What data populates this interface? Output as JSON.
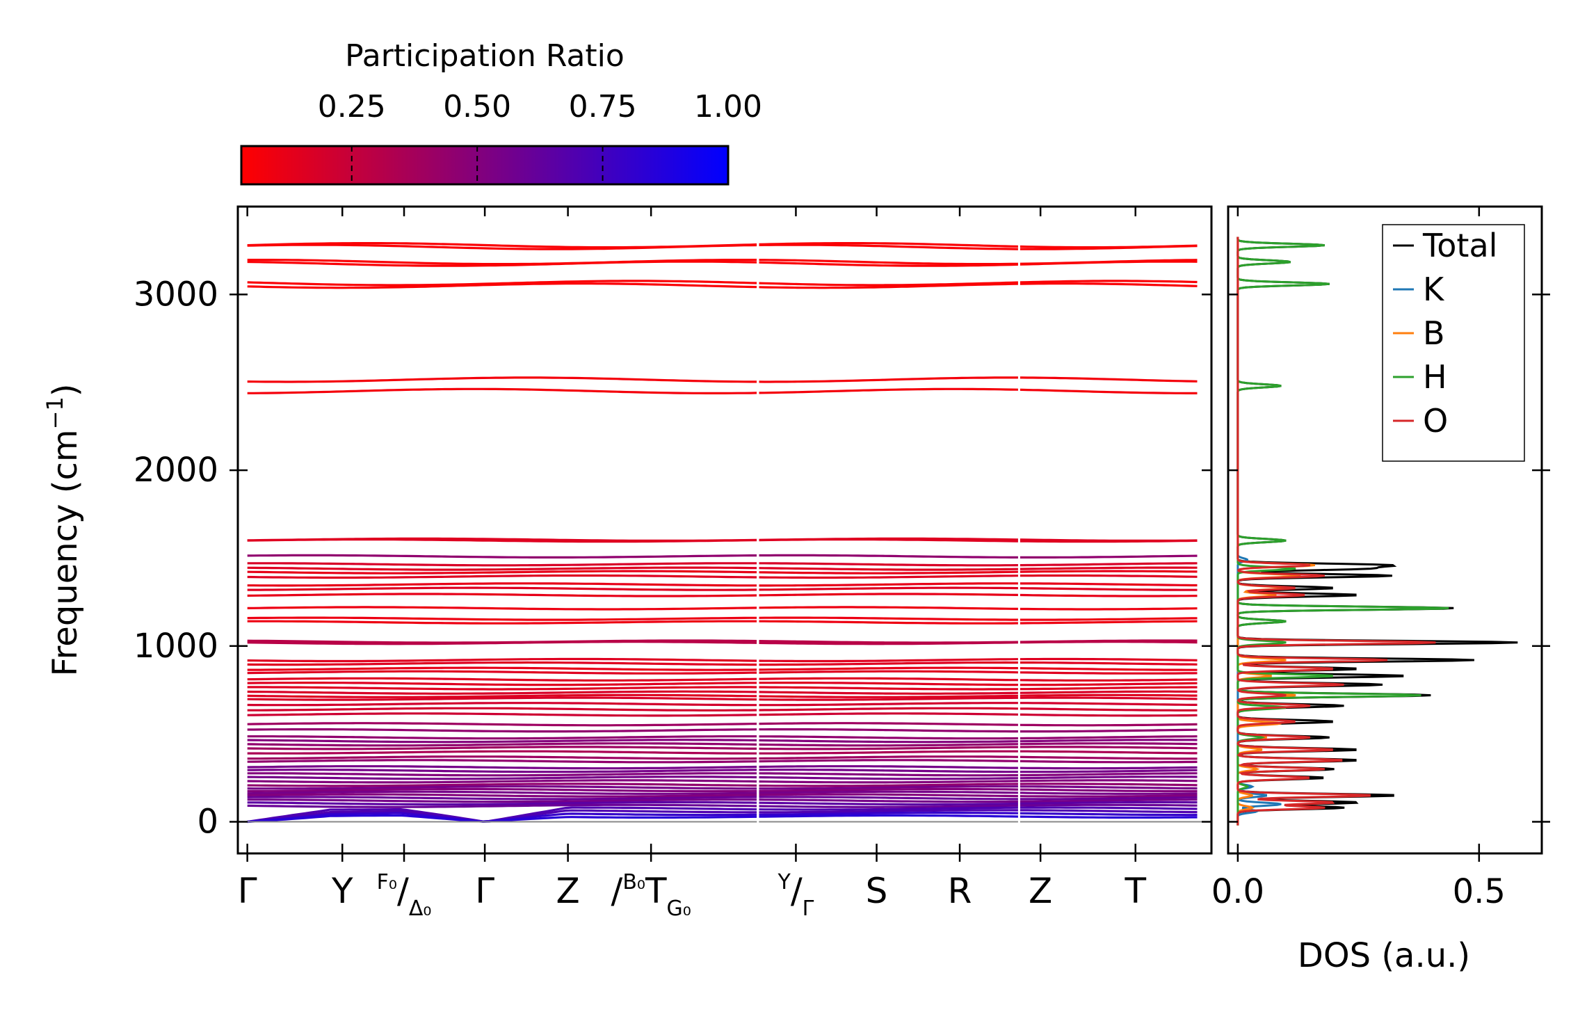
{
  "chart_data": [
    {
      "type": "line",
      "name": "phonon-band-structure",
      "ylabel_main": "Frequency (cm",
      "ylabel_sup": "−1",
      "ylabel_close": ")",
      "ylim": [
        -180,
        3500
      ],
      "yticks": [
        0,
        1000,
        2000,
        3000
      ],
      "ytick_labels": [
        "0",
        "1000",
        "2000",
        "3000"
      ],
      "segment_breaks": [
        2.15,
        3.25
      ],
      "xlim": [
        -0.04,
        4.06
      ],
      "high_symmetry_points": [
        {
          "x": 0.0,
          "label": "Γ"
        },
        {
          "x": 0.4,
          "label": "Y"
        },
        {
          "x": 0.66,
          "label": "/",
          "sup": "F₀",
          "sub": "Δ₀"
        },
        {
          "x": 1.0,
          "label": "Γ"
        },
        {
          "x": 1.35,
          "label": "Z"
        },
        {
          "x": 1.7,
          "label": "T",
          "pre": "/",
          "sup": "B₀",
          "sub": "G₀"
        },
        {
          "x": 2.31,
          "label": "/",
          "sup": "Y",
          "sub": "Γ"
        },
        {
          "x": 2.65,
          "label": "S"
        },
        {
          "x": 3.0,
          "label": "R"
        },
        {
          "x": 3.34,
          "label": "Z"
        },
        {
          "x": 3.74,
          "label": "T"
        }
      ],
      "bands": [
        {
          "f": 3280,
          "pr": 0.05
        },
        {
          "f": 3270,
          "pr": 0.05
        },
        {
          "f": 3185,
          "pr": 0.05
        },
        {
          "f": 3175,
          "pr": 0.05
        },
        {
          "f": 3065,
          "pr": 0.05
        },
        {
          "f": 3050,
          "pr": 0.05
        },
        {
          "f": 2515,
          "pr": 0.07
        },
        {
          "f": 2450,
          "pr": 0.07
        },
        {
          "f": 1605,
          "pr": 0.15
        },
        {
          "f": 1600,
          "pr": 0.15
        },
        {
          "f": 1510,
          "pr": 0.45
        },
        {
          "f": 1465,
          "pr": 0.18
        },
        {
          "f": 1440,
          "pr": 0.15
        },
        {
          "f": 1420,
          "pr": 0.12
        },
        {
          "f": 1395,
          "pr": 0.15
        },
        {
          "f": 1350,
          "pr": 0.12
        },
        {
          "f": 1325,
          "pr": 0.15
        },
        {
          "f": 1290,
          "pr": 0.12
        },
        {
          "f": 1215,
          "pr": 0.1
        },
        {
          "f": 1155,
          "pr": 0.1
        },
        {
          "f": 1135,
          "pr": 0.1
        },
        {
          "f": 1025,
          "pr": 0.3
        },
        {
          "f": 1018,
          "pr": 0.3
        },
        {
          "f": 920,
          "pr": 0.15
        },
        {
          "f": 900,
          "pr": 0.15
        },
        {
          "f": 870,
          "pr": 0.12
        },
        {
          "f": 850,
          "pr": 0.15
        },
        {
          "f": 810,
          "pr": 0.15
        },
        {
          "f": 785,
          "pr": 0.15
        },
        {
          "f": 760,
          "pr": 0.15
        },
        {
          "f": 735,
          "pr": 0.18
        },
        {
          "f": 715,
          "pr": 0.15
        },
        {
          "f": 700,
          "pr": 0.18
        },
        {
          "f": 670,
          "pr": 0.2
        },
        {
          "f": 640,
          "pr": 0.2
        },
        {
          "f": 610,
          "pr": 0.22
        },
        {
          "f": 555,
          "pr": 0.4
        },
        {
          "f": 520,
          "pr": 0.45
        },
        {
          "f": 480,
          "pr": 0.45
        },
        {
          "f": 460,
          "pr": 0.5
        },
        {
          "f": 440,
          "pr": 0.45
        },
        {
          "f": 420,
          "pr": 0.4
        },
        {
          "f": 395,
          "pr": 0.35
        },
        {
          "f": 365,
          "pr": 0.4
        },
        {
          "f": 345,
          "pr": 0.45
        },
        {
          "f": 310,
          "pr": 0.55
        },
        {
          "f": 290,
          "pr": 0.55
        },
        {
          "f": 270,
          "pr": 0.5
        },
        {
          "f": 250,
          "pr": 0.55
        },
        {
          "f": 230,
          "pr": 0.5
        },
        {
          "f": 210,
          "pr": 0.45
        },
        {
          "f": 195,
          "pr": 0.55
        },
        {
          "f": 180,
          "pr": 0.5
        },
        {
          "f": 165,
          "pr": 0.55
        },
        {
          "f": 150,
          "pr": 0.5
        },
        {
          "f": 135,
          "pr": 0.6
        },
        {
          "f": 120,
          "pr": 0.55
        },
        {
          "f": 105,
          "pr": 0.65
        },
        {
          "f": 90,
          "pr": 0.6
        },
        {
          "f": 75,
          "pr": 0.7
        },
        {
          "f": 60,
          "pr": 0.7
        },
        {
          "f": 45,
          "pr": 0.8
        },
        {
          "f": 30,
          "pr": 0.85
        }
      ],
      "acoustic_dips_at": [
        0.0,
        1.0
      ]
    },
    {
      "type": "line",
      "name": "density-of-states",
      "xlabel": "DOS (a.u.)",
      "xlim": [
        -0.02,
        0.63
      ],
      "xticks": [
        0.0,
        0.5
      ],
      "xtick_labels": [
        "0.0",
        "0.5"
      ],
      "legend_location": "upper-right",
      "series": [
        {
          "name": "Total",
          "color": "#000000",
          "peaks": [
            [
              3280,
              0.18
            ],
            [
              3185,
              0.11
            ],
            [
              3060,
              0.19
            ],
            [
              2480,
              0.09
            ],
            [
              1600,
              0.1
            ],
            [
              1460,
              0.3
            ],
            [
              1440,
              0.25
            ],
            [
              1400,
              0.32
            ],
            [
              1330,
              0.2
            ],
            [
              1290,
              0.25
            ],
            [
              1215,
              0.45
            ],
            [
              1140,
              0.1
            ],
            [
              1020,
              0.58
            ],
            [
              920,
              0.49
            ],
            [
              870,
              0.25
            ],
            [
              830,
              0.35
            ],
            [
              780,
              0.3
            ],
            [
              720,
              0.4
            ],
            [
              660,
              0.22
            ],
            [
              570,
              0.2
            ],
            [
              480,
              0.19
            ],
            [
              410,
              0.25
            ],
            [
              350,
              0.25
            ],
            [
              300,
              0.2
            ],
            [
              250,
              0.18
            ],
            [
              150,
              0.33
            ],
            [
              110,
              0.25
            ],
            [
              80,
              0.22
            ]
          ]
        },
        {
          "name": "K",
          "color": "#1f77b4",
          "peaks": [
            [
              1490,
              0.02
            ],
            [
              200,
              0.03
            ],
            [
              150,
              0.06
            ],
            [
              100,
              0.09
            ],
            [
              60,
              0.04
            ]
          ]
        },
        {
          "name": "B",
          "color": "#ff7f0e",
          "peaks": [
            [
              1460,
              0.16
            ],
            [
              1400,
              0.13
            ],
            [
              1330,
              0.1
            ],
            [
              1290,
              0.08
            ],
            [
              920,
              0.1
            ],
            [
              830,
              0.07
            ],
            [
              720,
              0.12
            ],
            [
              560,
              0.09
            ],
            [
              480,
              0.06
            ],
            [
              410,
              0.05
            ],
            [
              300,
              0.04
            ],
            [
              150,
              0.03
            ],
            [
              80,
              0.03
            ]
          ]
        },
        {
          "name": "H",
          "color": "#2ca02c",
          "peaks": [
            [
              3280,
              0.18
            ],
            [
              3185,
              0.11
            ],
            [
              3060,
              0.19
            ],
            [
              2480,
              0.09
            ],
            [
              1600,
              0.1
            ],
            [
              1440,
              0.12
            ],
            [
              1215,
              0.44
            ],
            [
              1140,
              0.1
            ],
            [
              1020,
              0.1
            ],
            [
              830,
              0.2
            ],
            [
              720,
              0.38
            ],
            [
              650,
              0.1
            ],
            [
              480,
              0.05
            ],
            [
              200,
              0.02
            ]
          ]
        },
        {
          "name": "O",
          "color": "#d62728",
          "peaks": [
            [
              1460,
              0.15
            ],
            [
              1400,
              0.18
            ],
            [
              1330,
              0.12
            ],
            [
              1290,
              0.14
            ],
            [
              1020,
              0.41
            ],
            [
              920,
              0.31
            ],
            [
              870,
              0.2
            ],
            [
              780,
              0.22
            ],
            [
              720,
              0.1
            ],
            [
              660,
              0.15
            ],
            [
              570,
              0.12
            ],
            [
              480,
              0.15
            ],
            [
              410,
              0.2
            ],
            [
              350,
              0.22
            ],
            [
              300,
              0.18
            ],
            [
              250,
              0.15
            ],
            [
              150,
              0.28
            ],
            [
              110,
              0.2
            ],
            [
              80,
              0.18
            ]
          ]
        }
      ]
    },
    {
      "type": "heatmap",
      "name": "participation-ratio-colorbar",
      "title": "Participation Ratio",
      "range": [
        0.03,
        1.0
      ],
      "ticks": [
        0.25,
        0.5,
        0.75,
        1.0
      ],
      "tick_labels": [
        "0.25",
        "0.50",
        "0.75",
        "1.00"
      ],
      "color_low": "#ff0000",
      "color_high": "#0000ff"
    }
  ]
}
